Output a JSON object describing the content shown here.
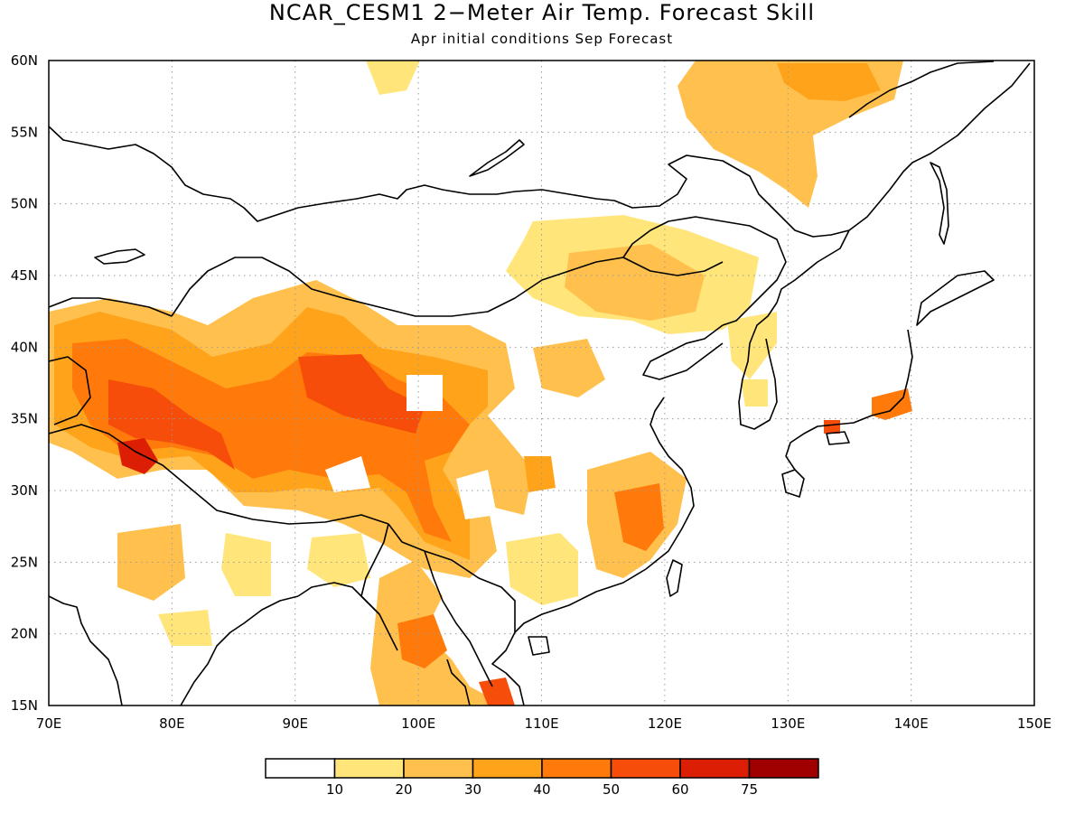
{
  "title": "NCAR_CESM1 2−Meter Air Temp. Forecast Skill",
  "subtitle": "Apr initial conditions  Sep Forecast",
  "map": {
    "lon_range": [
      70,
      150
    ],
    "lat_range": [
      15,
      60
    ],
    "lon_ticks": [
      "70E",
      "80E",
      "90E",
      "100E",
      "110E",
      "120E",
      "130E",
      "140E",
      "150E"
    ],
    "lat_ticks": [
      "15N",
      "20N",
      "25N",
      "30N",
      "35N",
      "40N",
      "45N",
      "50N",
      "55N",
      "60N"
    ],
    "gridlines": "dotted",
    "coastline_color": "#000000"
  },
  "colorbar": {
    "levels": [
      "10",
      "20",
      "30",
      "40",
      "50",
      "60",
      "75"
    ],
    "colors": [
      "#ffffff",
      "#ffe57a",
      "#ffc04d",
      "#ffa31a",
      "#ff7a0a",
      "#f64d0a",
      "#dc1e05",
      "#a00000"
    ]
  },
  "skill_regions": [
    {
      "region": "Tibetan Plateau / Western China",
      "level_index": 5
    },
    {
      "region": "Kashmir / Western Himalaya",
      "level_index": 6
    },
    {
      "region": "Central Mongolia",
      "level_index": 2
    },
    {
      "region": "Yakutia / Northeast Siberia",
      "level_index": 3
    },
    {
      "region": "Southeast China",
      "level_index": 4
    },
    {
      "region": "Indochina",
      "level_index": 5
    },
    {
      "region": "Central India",
      "level_index": 2
    },
    {
      "region": "Central Japan",
      "level_index": 4
    }
  ]
}
